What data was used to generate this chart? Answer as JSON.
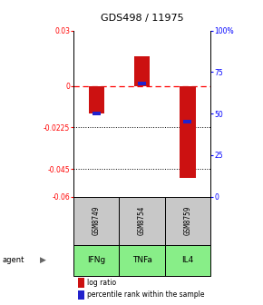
{
  "title": "GDS498 / 11975",
  "samples": [
    "GSM8749",
    "GSM8754",
    "GSM8759"
  ],
  "agents": [
    "IFNg",
    "TNFa",
    "IL4"
  ],
  "log_ratios": [
    -0.015,
    0.016,
    -0.05
  ],
  "percentile_ranks": [
    50,
    68,
    45
  ],
  "bar_color": "#cc1111",
  "dot_color": "#2222cc",
  "ylim_left": [
    -0.06,
    0.03
  ],
  "ylim_right": [
    0,
    100
  ],
  "yticks_left": [
    0.03,
    0,
    -0.0225,
    -0.045,
    -0.06
  ],
  "ytick_labels_left": [
    "0.03",
    "0",
    "-0.0225",
    "-0.045",
    "-0.06"
  ],
  "yticks_right": [
    100,
    75,
    50,
    25,
    0
  ],
  "ytick_labels_right": [
    "100%",
    "75",
    "50",
    "25",
    "0"
  ],
  "dotted_lines": [
    -0.0225,
    -0.045
  ],
  "sample_bg": "#c8c8c8",
  "agent_bg_color": "#88ee88",
  "legend_items": [
    {
      "color": "#cc1111",
      "label": "log ratio"
    },
    {
      "color": "#2222cc",
      "label": "percentile rank within the sample"
    }
  ]
}
